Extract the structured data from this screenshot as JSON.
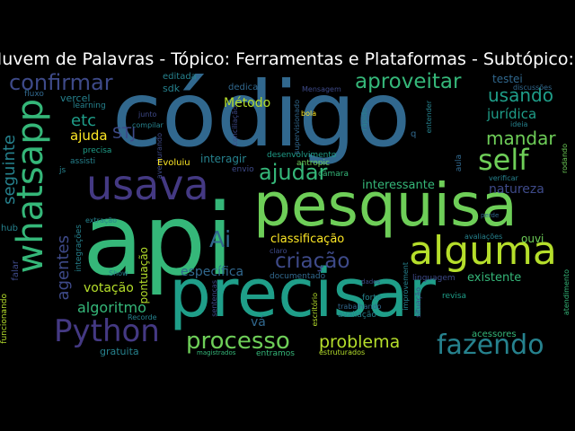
{
  "title": "Nuvem de Palavras - Tópico: Ferramentas e Plataformas - Subtópico: Código e API",
  "words": [
    {
      "text": "código",
      "color": "#31688e"
    },
    {
      "text": "api",
      "color": "#35b779"
    },
    {
      "text": "precisar",
      "color": "#1f9e89"
    },
    {
      "text": "pesquisa",
      "color": "#6ece58"
    },
    {
      "text": "whatsapp",
      "color": "#35b779"
    },
    {
      "text": "usava",
      "color": "#443983"
    },
    {
      "text": "alguma",
      "color": "#b5de2b"
    },
    {
      "text": "fazendo",
      "color": "#26828e"
    },
    {
      "text": "self",
      "color": "#6ece58"
    },
    {
      "text": "Python",
      "color": "#443983"
    },
    {
      "text": "processo",
      "color": "#6ece58"
    },
    {
      "text": "confirmar",
      "color": "#3e4a89"
    },
    {
      "text": "aproveitar",
      "color": "#35b779"
    },
    {
      "text": "criação",
      "color": "#3e4a89"
    },
    {
      "text": "ajudar",
      "color": "#35b779"
    },
    {
      "text": "problema",
      "color": "#b5de2b"
    },
    {
      "text": "usando",
      "color": "#1f9e89"
    },
    {
      "text": "mandar",
      "color": "#6ece58"
    },
    {
      "text": "agentes",
      "color": "#3e4a89"
    },
    {
      "text": "seguinte",
      "color": "#26828e"
    },
    {
      "text": "Ai",
      "color": "#31688e"
    },
    {
      "text": "etc",
      "color": "#1f9e89"
    },
    {
      "text": "STJ",
      "color": "#3e4a89"
    },
    {
      "text": "jurídica",
      "color": "#1f9e89"
    },
    {
      "text": "natureza",
      "color": "#3e4a89"
    },
    {
      "text": "ajuda",
      "color": "#fde725"
    },
    {
      "text": "Método",
      "color": "#b5de2b"
    },
    {
      "text": "algoritmo",
      "color": "#35b779"
    },
    {
      "text": "específica",
      "color": "#31688e"
    },
    {
      "text": "interessante",
      "color": "#35b779"
    },
    {
      "text": "classificação",
      "color": "#fde725"
    },
    {
      "text": "votação",
      "color": "#b5de2b"
    },
    {
      "text": "vá",
      "color": "#31688e"
    },
    {
      "text": "pontuação",
      "color": "#b5de2b"
    },
    {
      "text": "existente",
      "color": "#35b779"
    },
    {
      "text": "ouvi",
      "color": "#6ece58"
    },
    {
      "text": "testei",
      "color": "#31688e"
    },
    {
      "text": "interagir",
      "color": "#26828e"
    },
    {
      "text": "vercel",
      "color": "#26828e"
    },
    {
      "text": "sdk",
      "color": "#26828e"
    },
    {
      "text": "editada",
      "color": "#26828e"
    },
    {
      "text": "dedicar",
      "color": "#31688e"
    },
    {
      "text": "learning",
      "color": "#26828e"
    },
    {
      "text": "fluxo",
      "color": "#31688e"
    },
    {
      "text": "precisa",
      "color": "#1f9e89"
    },
    {
      "text": "assisti",
      "color": "#26828e"
    },
    {
      "text": "junto",
      "color": "#3e4a89"
    },
    {
      "text": "compilar",
      "color": "#26828e"
    },
    {
      "text": "aventurando",
      "color": "#3e4a89"
    },
    {
      "text": "Evoluiu",
      "color": "#fde725"
    },
    {
      "text": "envio",
      "color": "#3e4a89"
    },
    {
      "text": "antropic",
      "color": "#6ece58"
    },
    {
      "text": "desenvolvimento",
      "color": "#1f9e89"
    },
    {
      "text": "câmara",
      "color": "#35b779"
    },
    {
      "text": "Mensagem",
      "color": "#3e4a89"
    },
    {
      "text": "bola",
      "color": "#fde725"
    },
    {
      "text": "rápido",
      "color": "#26828e"
    },
    {
      "text": "q",
      "color": "#31688e"
    },
    {
      "text": "entender",
      "color": "#26828e"
    },
    {
      "text": "discussões",
      "color": "#31688e"
    },
    {
      "text": "ideia",
      "color": "#26828e"
    },
    {
      "text": "verificar",
      "color": "#26828e"
    },
    {
      "text": "rodando",
      "color": "#6ece58"
    },
    {
      "text": "aula",
      "color": "#31688e"
    },
    {
      "text": "js",
      "color": "#26828e"
    },
    {
      "text": "extração",
      "color": "#26828e"
    },
    {
      "text": "hub",
      "color": "#26828e"
    },
    {
      "text": "integrações",
      "color": "#26828e"
    },
    {
      "text": "Show",
      "color": "#26828e"
    },
    {
      "text": "falar",
      "color": "#3e4a89"
    },
    {
      "text": "funcionando",
      "color": "#b5de2b"
    },
    {
      "text": "gratuita",
      "color": "#26828e"
    },
    {
      "text": "Recorde",
      "color": "#26828e"
    },
    {
      "text": "sentenças",
      "color": "#3e4a89"
    },
    {
      "text": "magistrados",
      "color": "#35b779"
    },
    {
      "text": "entramos",
      "color": "#35b779"
    },
    {
      "text": "documentado",
      "color": "#31688e"
    },
    {
      "text": "claro",
      "color": "#3e4a89"
    },
    {
      "text": "trabalhando",
      "color": "#31688e"
    },
    {
      "text": "avaliação",
      "color": "#26828e"
    },
    {
      "text": "escritório",
      "color": "#b5de2b"
    },
    {
      "text": "dados",
      "color": "#3e4a89"
    },
    {
      "text": "forte",
      "color": "#26828e"
    },
    {
      "text": "improvement",
      "color": "#26828e"
    },
    {
      "text": "situação",
      "color": "#3e4a89"
    },
    {
      "text": "estruturados",
      "color": "#b5de2b"
    },
    {
      "text": "linguagem",
      "color": "#3e4a89"
    },
    {
      "text": "revisa",
      "color": "#1f9e89"
    },
    {
      "text": "acessores",
      "color": "#35b779"
    },
    {
      "text": "avaliações",
      "color": "#26828e"
    },
    {
      "text": "perde",
      "color": "#31688e"
    },
    {
      "text": "atendimento",
      "color": "#35b779"
    },
    {
      "text": "supervisionado",
      "color": "#31688e"
    },
    {
      "text": "conciliação",
      "color": "#3e4a89"
    }
  ]
}
